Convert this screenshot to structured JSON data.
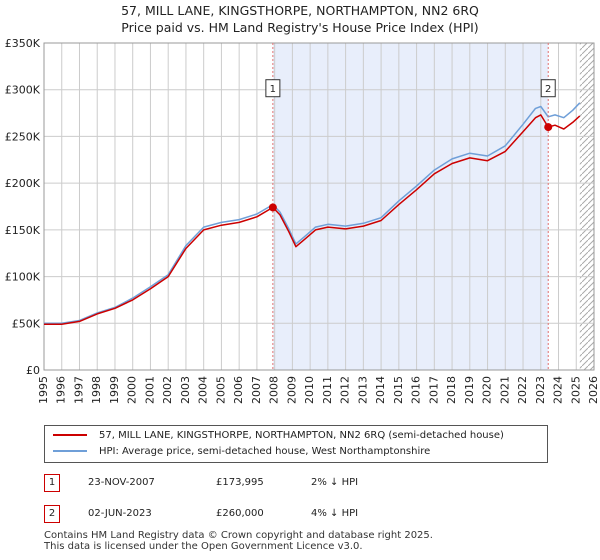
{
  "title_lines": [
    "57, MILL LANE, KINGSTHORPE, NORTHAMPTON, NN2 6RQ",
    "Price paid vs. HM Land Registry's House Price Index (HPI)"
  ],
  "colors": {
    "property_line": "#cc0000",
    "hpi_line": "#6f9fd8",
    "shade": "#e8eefb",
    "marker_vline": "#e07070",
    "grid": "#cccccc",
    "hatch": "#aaaaaa"
  },
  "chart_data": {
    "type": "line",
    "xlim": [
      1995,
      2026
    ],
    "ylim": [
      0,
      350000
    ],
    "y_ticks": [
      0,
      50000,
      100000,
      150000,
      200000,
      250000,
      300000,
      350000
    ],
    "y_tick_labels": [
      "£0",
      "£50K",
      "£100K",
      "£150K",
      "£200K",
      "£250K",
      "£300K",
      "£350K"
    ],
    "x_ticks": [
      1995,
      1996,
      1997,
      1998,
      1999,
      2000,
      2001,
      2002,
      2003,
      2004,
      2005,
      2006,
      2007,
      2008,
      2009,
      2010,
      2011,
      2012,
      2013,
      2014,
      2015,
      2016,
      2017,
      2018,
      2019,
      2020,
      2021,
      2022,
      2023,
      2024,
      2025,
      2026
    ],
    "x_tick_labels": [
      "1995",
      "1996",
      "1997",
      "1998",
      "1999",
      "2000",
      "2001",
      "2002",
      "2003",
      "2004",
      "2005",
      "2006",
      "2007",
      "2008",
      "2009",
      "2010",
      "2011",
      "2012",
      "2013",
      "2014",
      "2015",
      "2016",
      "2017",
      "2018",
      "2019",
      "2020",
      "2021",
      "2022",
      "2023",
      "2024",
      "2025",
      "2026"
    ],
    "grid": true,
    "shaded_period": [
      2007.9,
      2023.42
    ],
    "forecast_hatch_from": 2025.2,
    "series": [
      {
        "name": "57, MILL LANE, KINGSTHORPE, NORTHAMPTON, NN2 6RQ (semi-detached house)",
        "x": [
          1995.0,
          1996.0,
          1997.0,
          1998.0,
          1999.0,
          2000.0,
          2001.0,
          2002.0,
          2003.0,
          2004.0,
          2005.0,
          2006.0,
          2007.0,
          2007.9,
          2008.3,
          2008.8,
          2009.2,
          2009.7,
          2010.3,
          2011.0,
          2012.0,
          2013.0,
          2014.0,
          2015.0,
          2016.0,
          2017.0,
          2018.0,
          2019.0,
          2020.0,
          2021.0,
          2022.0,
          2022.7,
          2023.0,
          2023.42,
          2023.8,
          2024.3,
          2024.8,
          2025.2
        ],
        "y": [
          49000,
          49000,
          52000,
          60000,
          66000,
          75000,
          87000,
          100000,
          130000,
          150000,
          155000,
          158000,
          164000,
          173995,
          166000,
          148000,
          132000,
          140000,
          150000,
          153000,
          151000,
          154000,
          160000,
          177000,
          193000,
          210000,
          221000,
          227000,
          224000,
          234000,
          255000,
          270000,
          273000,
          260000,
          262000,
          258000,
          265000,
          272000
        ]
      },
      {
        "name": "HPI: Average price, semi-detached house, West Northamptonshire",
        "x": [
          1995.0,
          1996.0,
          1997.0,
          1998.0,
          1999.0,
          2000.0,
          2001.0,
          2002.0,
          2003.0,
          2004.0,
          2005.0,
          2006.0,
          2007.0,
          2007.9,
          2008.3,
          2008.8,
          2009.2,
          2009.7,
          2010.3,
          2011.0,
          2012.0,
          2013.0,
          2014.0,
          2015.0,
          2016.0,
          2017.0,
          2018.0,
          2019.0,
          2020.0,
          2021.0,
          2022.0,
          2022.7,
          2023.0,
          2023.42,
          2023.8,
          2024.3,
          2024.8,
          2025.2
        ],
        "y": [
          50000,
          50000,
          53000,
          61000,
          67000,
          77000,
          89000,
          102000,
          133000,
          153000,
          158000,
          161000,
          167000,
          177000,
          169000,
          151000,
          135000,
          143000,
          153000,
          156000,
          154000,
          157000,
          163000,
          181000,
          197000,
          214000,
          226000,
          232000,
          229000,
          240000,
          263000,
          280000,
          282000,
          271000,
          273000,
          270000,
          278000,
          286000
        ]
      }
    ],
    "sale_markers": [
      {
        "label": "1",
        "x": 2007.9,
        "y": 173995
      },
      {
        "label": "2",
        "x": 2023.42,
        "y": 260000
      }
    ]
  },
  "legend": {
    "property": "57, MILL LANE, KINGSTHORPE, NORTHAMPTON, NN2 6RQ (semi-detached house)",
    "hpi": "HPI: Average price, semi-detached house, West Northamptonshire"
  },
  "transactions": [
    {
      "num": "1",
      "date": "23-NOV-2007",
      "price": "£173,995",
      "hpi": "2% ↓ HPI"
    },
    {
      "num": "2",
      "date": "02-JUN-2023",
      "price": "£260,000",
      "hpi": "4% ↓ HPI"
    }
  ],
  "footer": [
    "Contains HM Land Registry data © Crown copyright and database right 2025.",
    "This data is licensed under the Open Government Licence v3.0."
  ]
}
